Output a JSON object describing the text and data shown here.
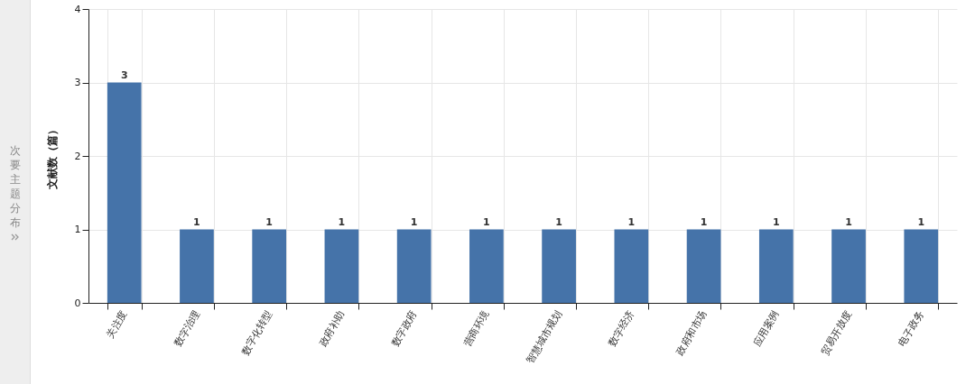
{
  "chart_data": {
    "type": "bar",
    "ylabel": "文献数（篇）",
    "categories": [
      "关注度",
      "数字治理",
      "数字化转型",
      "政府补助",
      "数字政府",
      "营商环境",
      "智慧城市规划",
      "数字经济",
      "政府和市场",
      "应用案例",
      "贸易开放度",
      "电子政务"
    ],
    "values": [
      3,
      1,
      1,
      1,
      1,
      1,
      1,
      1,
      1,
      1,
      1,
      1
    ],
    "color": "#4573a9",
    "ylim": [
      0,
      4
    ],
    "yticks": [
      0,
      1,
      2,
      3,
      4
    ],
    "grid": true,
    "data_labels": true,
    "annotations": [
      "次要主题分布"
    ]
  }
}
